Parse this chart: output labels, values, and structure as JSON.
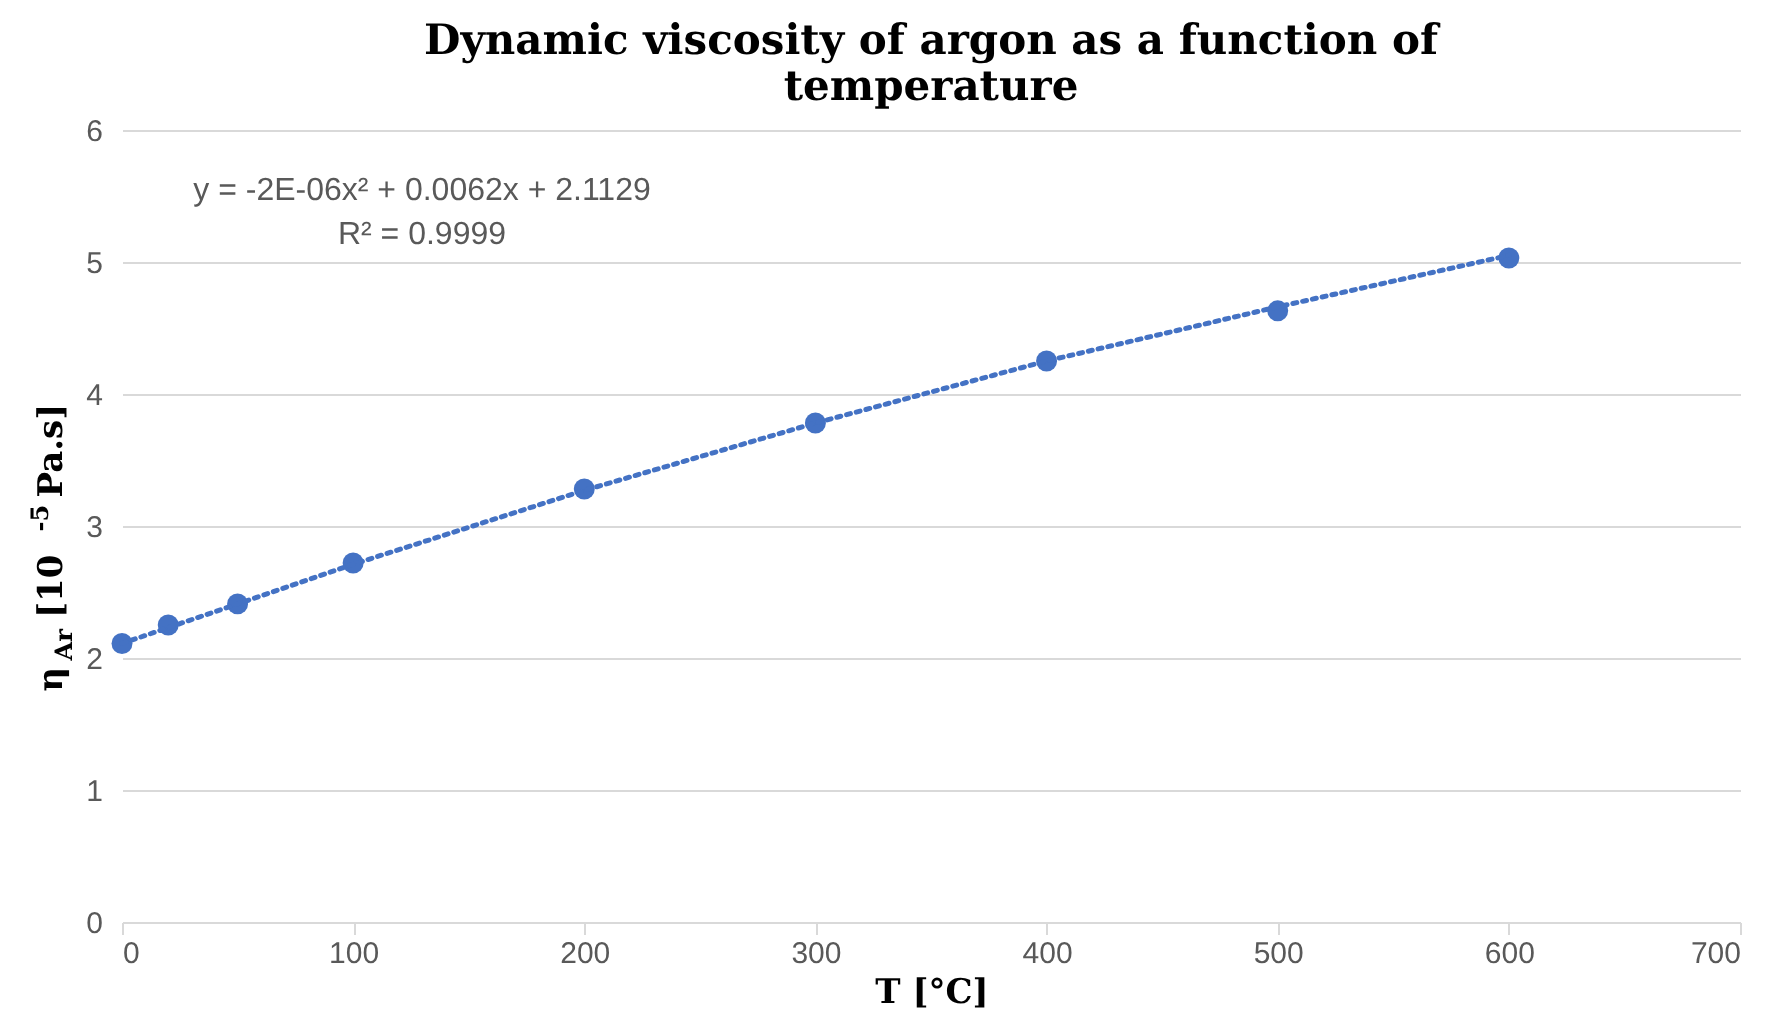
{
  "chart_data": {
    "type": "scatter",
    "title": "Dynamic viscosity of argon as a function of temperature",
    "xlabel": "T [°C]",
    "ylabel": "η$_{Ar}$ [10$^{-5}$ Pa.s]",
    "x": [
      0,
      20,
      50,
      100,
      200,
      300,
      400,
      500,
      600
    ],
    "series": [
      {
        "color": "#4472c4",
        "values": [
          2.11,
          2.25,
          2.41,
          2.72,
          3.28,
          3.78,
          4.25,
          4.63,
          5.03
        ],
        "marker": "circle"
      },
      {
        "type": "line",
        "color": "#4472c4",
        "line_style": "dotted",
        "marker": "none",
        "x": [
          0,
          100,
          200,
          300,
          400,
          500,
          600
        ],
        "values": [
          2.11,
          2.71,
          3.27,
          3.78,
          4.25,
          4.66,
          5.05
        ]
      }
    ],
    "annotations": [
      "y = -2E-06x² + 0.0062x + 2.1129",
      "R² = 0.9999"
    ],
    "xlim": [
      0,
      700
    ],
    "xticks": [
      0,
      100,
      200,
      300,
      400,
      500,
      600,
      700
    ],
    "ylim": [
      0,
      6
    ],
    "yticks": [
      0,
      1,
      2,
      3,
      4,
      5,
      6
    ],
    "grid": "y"
  }
}
